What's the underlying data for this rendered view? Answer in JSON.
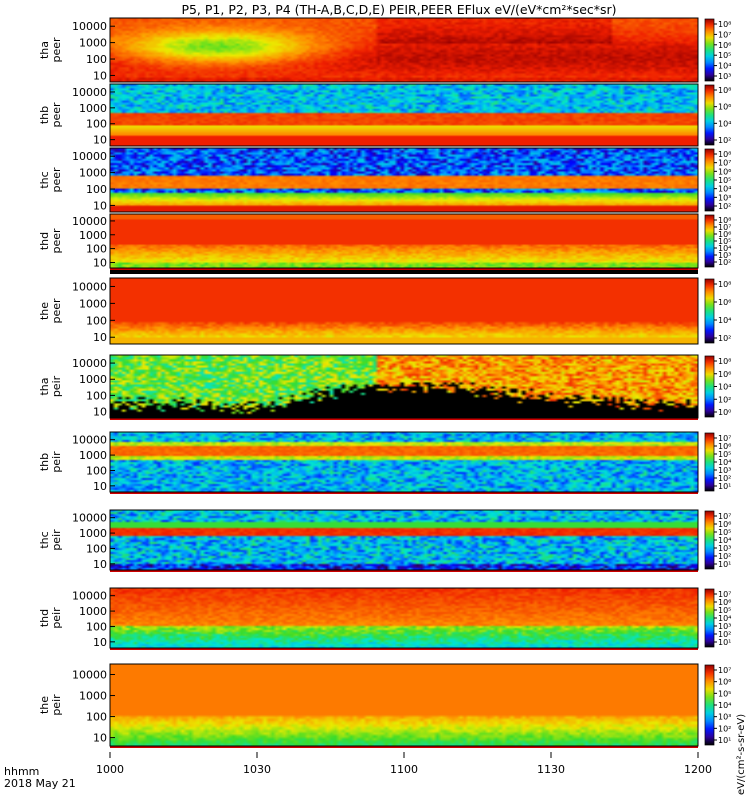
{
  "chart_data": {
    "type": "heatmap",
    "title": "P5, P1, P2, P3, P4 (TH-A,B,C,D,E) PEIR,PEER EFlux eV/(eV*cm²*sec*sr)",
    "x_axis": {
      "label": "hhmm",
      "date": "2018 May 21",
      "tick_labels": [
        "1000",
        "1030",
        "1100",
        "1130",
        "1200"
      ],
      "range": [
        "10:00",
        "12:00"
      ]
    },
    "y_scale": "log",
    "colorbar_label": "eV/(cm²-s-sr-eV)",
    "panels": [
      {
        "probe": "tha",
        "species": "peer",
        "ylabel": [
          "tha",
          "peer"
        ],
        "yticks": [
          "10000",
          "1000",
          "100",
          "10"
        ],
        "cb_ticks": [
          "10⁸",
          "10⁷",
          "10⁶",
          "10⁵",
          "10⁴",
          "10³"
        ],
        "band_color": ""
      },
      {
        "probe": "thb",
        "species": "peer",
        "ylabel": [
          "thb",
          "peer"
        ],
        "yticks": [
          "10000",
          "1000",
          "100",
          "10"
        ],
        "cb_ticks": [
          "10⁸",
          "10⁶",
          "10⁴",
          "10²"
        ],
        "band_color": ""
      },
      {
        "probe": "thc",
        "species": "peer",
        "ylabel": [
          "thc",
          "peer"
        ],
        "yticks": [
          "10000",
          "1000",
          "100",
          "10"
        ],
        "cb_ticks": [
          "10⁸",
          "10⁷",
          "10⁶",
          "10⁵",
          "10⁴",
          "10³",
          "10²"
        ],
        "band_color": ""
      },
      {
        "probe": "thd",
        "species": "peer",
        "ylabel": [
          "thd",
          "peer"
        ],
        "yticks": [
          "10000",
          "1000",
          "100",
          "10"
        ],
        "cb_ticks": [
          "10⁸",
          "10⁷",
          "10⁶",
          "10⁵",
          "10⁴",
          "10³",
          "10²"
        ],
        "band_color": "#000000"
      },
      {
        "probe": "the",
        "species": "peer",
        "ylabel": [
          "the",
          "peer"
        ],
        "yticks": [
          "10000",
          "1000",
          "100",
          "10"
        ],
        "cb_ticks": [
          "10⁸",
          "10⁶",
          "10⁴",
          "10²"
        ],
        "band_color": ""
      },
      {
        "probe": "tha",
        "species": "peir",
        "ylabel": [
          "tha",
          "peir"
        ],
        "yticks": [
          "10000",
          "1000",
          "100",
          "10"
        ],
        "cb_ticks": [
          "10⁸",
          "10⁶",
          "10⁴",
          "10²",
          "10⁰"
        ],
        "band_color": "#ffffff"
      },
      {
        "probe": "thb",
        "species": "peir",
        "ylabel": [
          "thb",
          "peir"
        ],
        "yticks": [
          "10000",
          "1000",
          "100",
          "10"
        ],
        "cb_ticks": [
          "10⁷",
          "10⁶",
          "10⁵",
          "10⁴",
          "10³",
          "10²",
          "10¹"
        ],
        "band_color": "#ffffff"
      },
      {
        "probe": "thc",
        "species": "peir",
        "ylabel": [
          "thc",
          "peir"
        ],
        "yticks": [
          "10000",
          "1000",
          "100",
          "10"
        ],
        "cb_ticks": [
          "10⁷",
          "10⁶",
          "10⁵",
          "10⁴",
          "10³",
          "10²",
          "10¹"
        ],
        "band_color": "#ffffff"
      },
      {
        "probe": "thd",
        "species": "peir",
        "ylabel": [
          "thd",
          "peir"
        ],
        "yticks": [
          "10000",
          "1000",
          "100",
          "10"
        ],
        "cb_ticks": [
          "10⁷",
          "10⁶",
          "10⁵",
          "10⁴",
          "10³",
          "10²",
          "10¹"
        ],
        "band_color": "#ffffff"
      },
      {
        "probe": "the",
        "species": "peir",
        "ylabel": [
          "the",
          "peir"
        ],
        "yticks": [
          "10000",
          "1000",
          "100",
          "10"
        ],
        "cb_ticks": [
          "10⁷",
          "10⁶",
          "10⁵",
          "10⁴",
          "10³",
          "10²",
          "10¹"
        ],
        "band_color": "#ffffff"
      }
    ]
  }
}
